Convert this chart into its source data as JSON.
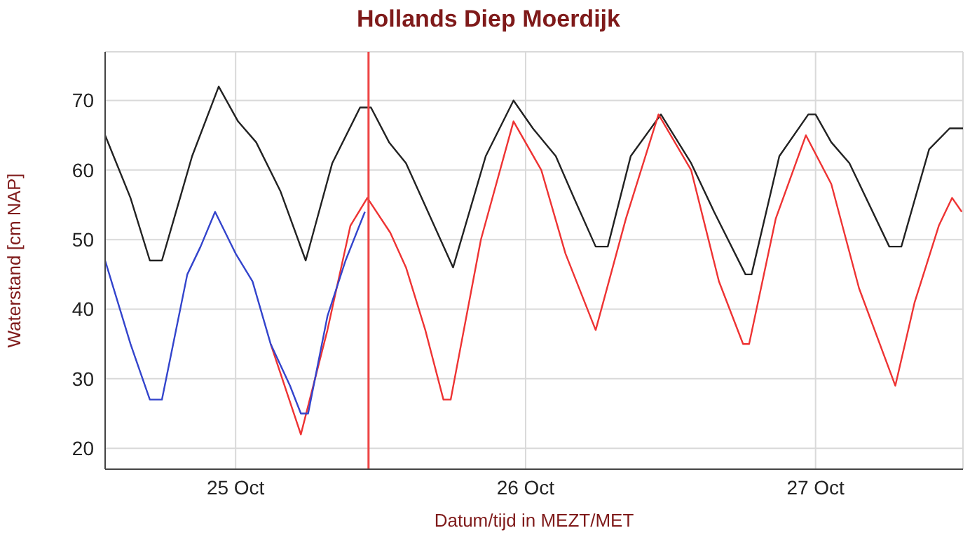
{
  "chart_data": {
    "type": "line",
    "title": "Hollands Diep Moerdijk",
    "xlabel": "Datum/tijd in MEZT/MET",
    "ylabel": "Waterstand [cm NAP]",
    "xlim": [
      "--10-24T13:12",
      "--10-27T12:12"
    ],
    "xticks": [
      {
        "value": "--10-25",
        "label": "25 Oct"
      },
      {
        "value": "--10-26",
        "label": "26 Oct"
      },
      {
        "value": "--10-27",
        "label": "27 Oct"
      }
    ],
    "ylim": [
      17,
      77
    ],
    "yticks": [
      20,
      30,
      40,
      50,
      60,
      70
    ],
    "grid": true,
    "ref_lines": [
      {
        "axis": "x",
        "value": "--10-25T11:00",
        "color": "#ee4444"
      }
    ],
    "series": [
      {
        "color": "#222222",
        "x": [
          "--10-24T13:12",
          "--10-24T15:18",
          "--10-24T16:54",
          "--10-24T17:54",
          "--10-24T20:24",
          "--10-24T22:36",
          "--10-25T00:12",
          "--10-25T01:42",
          "--10-25T03:42",
          "--10-25T05:48",
          "--10-25T08:00",
          "--10-25T10:18",
          "--10-25T11:12",
          "--10-25T12:42",
          "--10-25T14:06",
          "--10-25T18:00",
          "--10-25T20:42",
          "--10-25T23:00",
          "--10-26T00:36",
          "--10-26T02:30",
          "--10-26T04:00",
          "--10-26T05:48",
          "--10-26T06:48",
          "--10-26T08:42",
          "--10-26T11:12",
          "--10-26T13:42",
          "--10-26T15:36",
          "--10-26T18:12",
          "--10-26T18:42",
          "--10-26T21:00",
          "--10-26T23:24",
          "--10-27T00:00",
          "--10-27T01:18",
          "--10-27T02:48",
          "--10-27T06:06",
          "--10-27T07:06",
          "--10-27T09:24",
          "--10-27T11:06",
          "--10-27T12:12"
        ],
        "values": [
          65,
          56,
          47,
          47,
          62,
          72,
          67,
          64,
          57,
          47,
          61,
          69,
          69,
          64,
          61,
          46,
          62,
          70,
          66,
          62,
          56,
          49,
          49,
          62,
          68,
          61,
          54,
          45,
          45,
          62,
          68,
          68,
          64,
          61,
          49,
          49,
          63,
          66,
          66
        ]
      },
      {
        "color": "#ee3333",
        "x": [
          "--10-25T02:54",
          "--10-25T05:24",
          "--10-25T07:36",
          "--10-25T09:30",
          "--10-25T10:54",
          "--10-25T12:48",
          "--10-25T14:06",
          "--10-25T15:42",
          "--10-25T17:12",
          "--10-25T17:48",
          "--10-25T20:18",
          "--10-25T23:00",
          "--10-26T01:18",
          "--10-26T03:18",
          "--10-26T05:48",
          "--10-26T08:18",
          "--10-26T11:00",
          "--10-26T13:42",
          "--10-26T16:00",
          "--10-26T18:00",
          "--10-26T18:30",
          "--10-26T20:42",
          "--10-26T23:12",
          "--10-27T01:18",
          "--10-27T03:36",
          "--10-27T06:36",
          "--10-27T08:12",
          "--10-27T10:12",
          "--10-27T11:18",
          "--10-27T12:06"
        ],
        "values": [
          35,
          22,
          37,
          52,
          56,
          51,
          46,
          37,
          27,
          27,
          50,
          67,
          60,
          48,
          37,
          53,
          68,
          60,
          44,
          35,
          35,
          53,
          65,
          58,
          43,
          29,
          41,
          52,
          56,
          54
        ]
      },
      {
        "color": "#3344cc",
        "x": [
          "--10-24T13:12",
          "--10-24T15:18",
          "--10-24T16:54",
          "--10-24T17:54",
          "--10-24T20:00",
          "--10-24T21:06",
          "--10-24T22:18",
          "--10-25T00:00",
          "--10-25T01:24",
          "--10-25T02:54",
          "--10-25T04:30",
          "--10-25T05:24",
          "--10-25T06:00",
          "--10-25T07:36",
          "--10-25T09:06",
          "--10-25T10:42"
        ],
        "values": [
          47,
          35,
          27,
          27,
          45,
          49,
          54,
          48,
          44,
          35,
          29,
          25,
          25,
          39,
          47,
          54
        ]
      }
    ]
  }
}
